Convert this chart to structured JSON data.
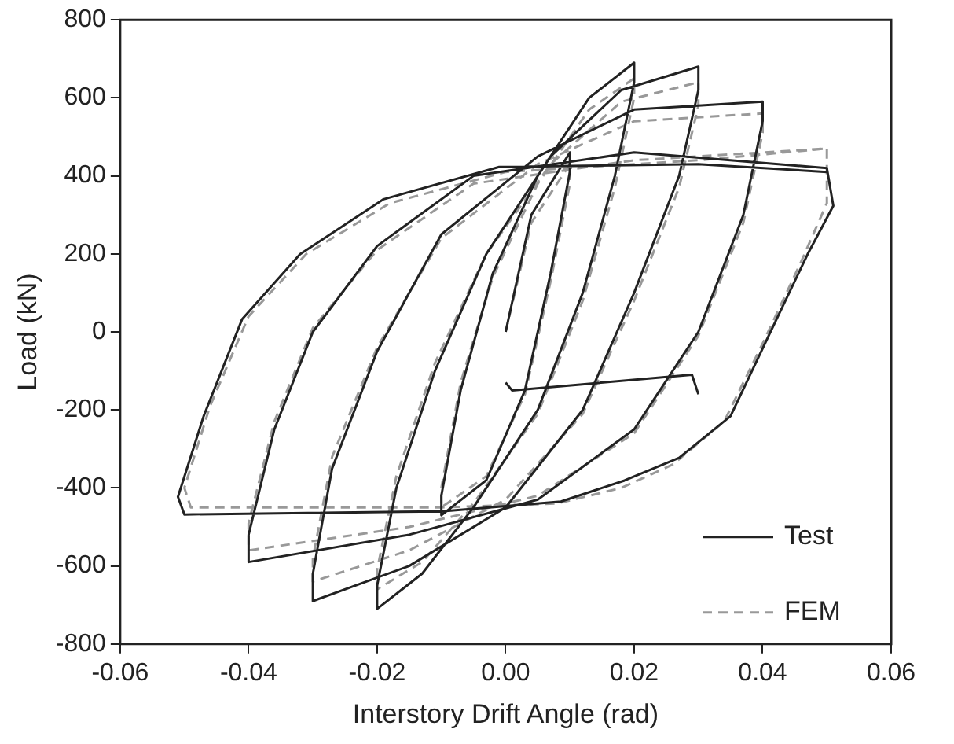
{
  "chart_data": {
    "type": "line",
    "xlabel": "Interstory Drift Angle (rad)",
    "ylabel": "Load (kN)",
    "xlim": [
      -0.06,
      0.06
    ],
    "xticks": [
      {
        "value": -0.06,
        "label": "-0.06"
      },
      {
        "value": -0.04,
        "label": "-0.04"
      },
      {
        "value": -0.02,
        "label": "-0.02"
      },
      {
        "value": 0,
        "label": "0.00"
      },
      {
        "value": 0.02,
        "label": "0.02"
      },
      {
        "value": 0.04,
        "label": "0.04"
      },
      {
        "value": 0.06,
        "label": "0.06"
      }
    ],
    "ylim": [
      -800,
      800
    ],
    "yticks": [
      -800,
      -600,
      -400,
      -200,
      0,
      200,
      400,
      600,
      800
    ],
    "grid": false,
    "legend": "bottom right",
    "marker": "none",
    "series": [
      {
        "name": "Test",
        "color": "#222222",
        "line_style": "solid",
        "x": [
          0.0,
          0.004,
          0.01,
          0.01,
          0.007,
          0.003,
          -0.003,
          -0.01,
          -0.01,
          -0.007,
          -0.002,
          0.005,
          0.013,
          0.02,
          0.02,
          0.017,
          0.012,
          0.005,
          -0.005,
          -0.013,
          -0.02,
          -0.02,
          -0.017,
          -0.011,
          -0.003,
          0.007,
          0.018,
          0.03,
          0.03,
          0.027,
          0.02,
          0.012,
          0.0,
          -0.015,
          -0.03,
          -0.03,
          -0.027,
          -0.02,
          -0.01,
          0.005,
          0.02,
          0.04,
          0.04,
          0.037,
          0.03,
          0.02,
          0.005,
          -0.015,
          -0.04,
          -0.04,
          -0.036,
          -0.03,
          -0.02,
          -0.005,
          0.02,
          0.05,
          0.051,
          0.047,
          0.041,
          0.035,
          0.027,
          0.0185,
          0.0086,
          -0.01,
          -0.05,
          -0.051,
          -0.047,
          -0.041,
          -0.032,
          -0.019,
          -0.001,
          0.03,
          0.05
        ],
        "values": [
          0,
          300,
          460,
          410,
          150,
          -150,
          -380,
          -470,
          -420,
          -150,
          150,
          400,
          600,
          690,
          640,
          400,
          100,
          -200,
          -450,
          -620,
          -710,
          -650,
          -400,
          -100,
          200,
          450,
          620,
          680,
          620,
          400,
          100,
          -200,
          -450,
          -600,
          -690,
          -620,
          -350,
          -50,
          250,
          450,
          570,
          590,
          540,
          300,
          0,
          -250,
          -430,
          -520,
          -590,
          -520,
          -250,
          0,
          220,
          400,
          460,
          420,
          323,
          199,
          -8,
          -216,
          -323,
          -381,
          -435,
          -460,
          -468,
          -423,
          -216,
          33,
          199,
          340,
          423,
          430,
          410
        ]
      },
      {
        "color": "#222222",
        "line_style": "solid",
        "x": [
          0.0,
          0.001,
          0.029,
          0.03
        ],
        "values": [
          -130,
          -150,
          -110,
          -160
        ]
      },
      {
        "name": "FEM",
        "color": "#999999",
        "line_style": "dashed",
        "x": [
          0.0,
          0.004,
          0.01,
          0.01,
          0.007,
          0.003,
          -0.003,
          -0.01,
          -0.01,
          -0.007,
          -0.002,
          0.005,
          0.013,
          0.02,
          0.02,
          0.017,
          0.012,
          0.005,
          -0.005,
          -0.013,
          -0.02,
          -0.02,
          -0.017,
          -0.011,
          -0.003,
          0.007,
          0.018,
          0.03,
          0.03,
          0.027,
          0.02,
          0.012,
          0.0,
          -0.015,
          -0.03,
          -0.03,
          -0.027,
          -0.02,
          -0.01,
          0.005,
          0.02,
          0.04,
          0.04,
          0.037,
          0.03,
          0.02,
          0.005,
          -0.015,
          -0.04,
          -0.04,
          -0.036,
          -0.03,
          -0.02,
          -0.005,
          0.02,
          0.05,
          0.05,
          0.046,
          0.04,
          0.034,
          0.026,
          0.018,
          0.008,
          -0.01,
          -0.049,
          -0.05,
          -0.046,
          -0.04,
          -0.031,
          -0.018,
          0.0,
          0.03,
          0.05
        ],
        "values": [
          0,
          280,
          430,
          380,
          130,
          -160,
          -370,
          -450,
          -400,
          -130,
          140,
          380,
          570,
          650,
          600,
          370,
          80,
          -210,
          -440,
          -590,
          -660,
          -610,
          -370,
          -80,
          200,
          430,
          590,
          640,
          580,
          370,
          80,
          -210,
          -430,
          -560,
          -640,
          -580,
          -320,
          -40,
          240,
          430,
          540,
          560,
          510,
          280,
          -10,
          -260,
          -420,
          -500,
          -560,
          -490,
          -230,
          10,
          210,
          380,
          440,
          470,
          330,
          180,
          -30,
          -230,
          -340,
          -400,
          -440,
          -450,
          -450,
          -400,
          -190,
          40,
          200,
          330,
          410,
          440,
          470
        ]
      }
    ]
  }
}
